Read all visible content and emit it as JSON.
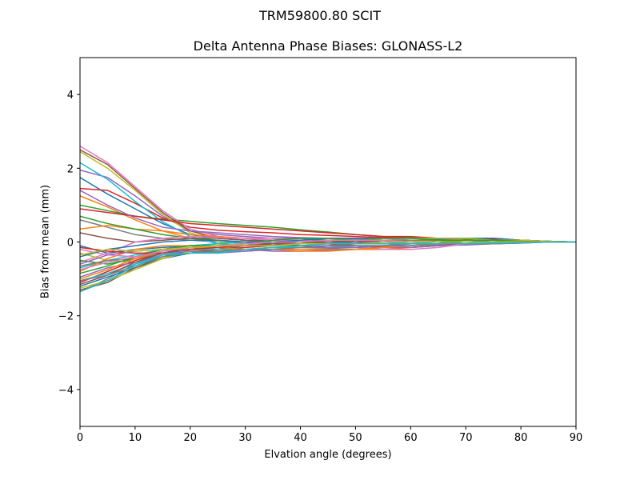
{
  "chart_data": {
    "type": "line",
    "suptitle": "TRM59800.80      SCIT",
    "title": "Delta Antenna Phase Biases: GLONASS-L2",
    "xlabel": "Elvation angle (degrees)",
    "ylabel": "Bias from mean (mm)",
    "xlim": [
      0,
      90
    ],
    "ylim": [
      -5,
      5
    ],
    "xticks": [
      0,
      10,
      20,
      30,
      40,
      50,
      60,
      70,
      80,
      90
    ],
    "yticks": [
      -4,
      -2,
      0,
      2,
      4
    ],
    "ytick_labels": [
      "−4",
      "−2",
      "0",
      "2",
      "4"
    ],
    "grid": false,
    "colors": [
      "#1f77b4",
      "#ff7f0e",
      "#2ca02c",
      "#d62728",
      "#9467bd",
      "#8c564b",
      "#e377c2",
      "#7f7f7f",
      "#bcbd22",
      "#17becf"
    ],
    "x": [
      0,
      5,
      10,
      15,
      20,
      25,
      30,
      35,
      40,
      45,
      50,
      55,
      60,
      65,
      70,
      75,
      80,
      85,
      90
    ],
    "series": [
      {
        "values": [
          1.75,
          1.3,
          0.9,
          0.5,
          0.2,
          0.1,
          0.05,
          0.05,
          0.0,
          0.0,
          0.05,
          0.05,
          0.05,
          0.0,
          0.0,
          0.05,
          0.0,
          0.0,
          0
        ]
      },
      {
        "values": [
          1.25,
          0.95,
          0.6,
          0.3,
          0.1,
          0.0,
          -0.05,
          -0.1,
          -0.1,
          -0.05,
          0.0,
          0.0,
          0.05,
          0.05,
          0.0,
          0.0,
          0.0,
          0.0,
          0
        ]
      },
      {
        "values": [
          1.0,
          0.85,
          0.7,
          0.62,
          0.56,
          0.5,
          0.45,
          0.4,
          0.33,
          0.27,
          0.2,
          0.15,
          0.12,
          0.1,
          0.08,
          0.06,
          0.05,
          0.02,
          0
        ]
      },
      {
        "values": [
          1.45,
          1.4,
          1.05,
          0.65,
          0.4,
          0.32,
          0.28,
          0.25,
          0.2,
          0.18,
          0.15,
          0.12,
          0.1,
          0.08,
          0.1,
          0.1,
          0.05,
          0.02,
          0
        ]
      },
      {
        "values": [
          1.95,
          1.75,
          1.25,
          0.7,
          0.3,
          0.2,
          0.15,
          0.1,
          0.1,
          0.05,
          0.05,
          0.0,
          0.0,
          0.05,
          0.05,
          0.05,
          0.02,
          0.0,
          0
        ]
      },
      {
        "values": [
          2.5,
          2.1,
          1.45,
          0.8,
          0.3,
          0.1,
          0.05,
          0.05,
          0.1,
          0.1,
          0.1,
          0.05,
          0.0,
          0.05,
          0.05,
          0.05,
          0.05,
          0.0,
          0
        ]
      },
      {
        "values": [
          2.6,
          2.15,
          1.5,
          0.85,
          0.35,
          0.15,
          0.1,
          0.1,
          0.05,
          0.05,
          0.1,
          0.1,
          0.05,
          0.05,
          0.1,
          0.1,
          0.05,
          0.02,
          0
        ]
      },
      {
        "values": [
          0.6,
          0.4,
          0.2,
          0.1,
          0.05,
          0.0,
          0.0,
          -0.05,
          -0.05,
          0.0,
          0.0,
          0.0,
          0.0,
          0.0,
          0.0,
          0.0,
          0.0,
          0.0,
          0
        ]
      },
      {
        "values": [
          2.45,
          2.0,
          1.4,
          0.75,
          0.25,
          0.0,
          -0.05,
          0.0,
          0.05,
          0.1,
          0.1,
          0.05,
          0.05,
          0.0,
          0.05,
          0.05,
          0.0,
          0.0,
          0
        ]
      },
      {
        "values": [
          2.15,
          1.7,
          1.1,
          0.55,
          0.15,
          -0.05,
          -0.1,
          -0.1,
          -0.05,
          0.0,
          0.0,
          0.0,
          -0.05,
          -0.05,
          0.0,
          0.0,
          0.0,
          0.0,
          0
        ]
      },
      {
        "values": [
          -0.1,
          -0.3,
          -0.2,
          -0.15,
          -0.1,
          -0.05,
          0.0,
          0.05,
          0.05,
          0.05,
          0.05,
          0.0,
          0.0,
          0.0,
          0.0,
          0.0,
          0.0,
          0.0,
          0
        ]
      },
      {
        "values": [
          0.35,
          0.45,
          0.35,
          0.3,
          0.2,
          0.15,
          0.1,
          0.05,
          0.05,
          0.0,
          0.0,
          0.0,
          0.0,
          0.0,
          0.0,
          0.0,
          0.0,
          0.0,
          0
        ]
      },
      {
        "values": [
          0.7,
          0.5,
          0.35,
          0.2,
          0.1,
          0.05,
          0.0,
          0.0,
          0.0,
          0.0,
          0.05,
          0.05,
          0.05,
          0.05,
          0.0,
          0.0,
          0.0,
          0.0,
          0
        ]
      },
      {
        "values": [
          0.9,
          0.8,
          0.7,
          0.6,
          0.5,
          0.45,
          0.4,
          0.35,
          0.3,
          0.25,
          0.2,
          0.15,
          0.15,
          0.1,
          0.1,
          0.08,
          0.05,
          0.02,
          0
        ]
      },
      {
        "values": [
          1.4,
          1.0,
          0.65,
          0.4,
          0.3,
          0.25,
          0.2,
          0.15,
          0.12,
          0.1,
          0.08,
          0.05,
          0.05,
          0.05,
          0.05,
          0.05,
          0.02,
          0.0,
          0
        ]
      },
      {
        "values": [
          0.25,
          0.1,
          0.0,
          0.05,
          0.1,
          0.1,
          0.05,
          0.0,
          0.0,
          -0.05,
          -0.1,
          -0.15,
          -0.1,
          -0.05,
          0.0,
          0.0,
          0.0,
          0.0,
          0
        ]
      },
      {
        "values": [
          -0.55,
          -0.3,
          0.0,
          0.1,
          0.15,
          0.12,
          0.1,
          0.05,
          0.05,
          0.0,
          0.0,
          0.0,
          0.0,
          0.0,
          0.0,
          0.0,
          0.0,
          0.0,
          0
        ]
      },
      {
        "values": [
          -1.35,
          -1.0,
          -0.6,
          -0.35,
          -0.3,
          -0.28,
          -0.25,
          -0.2,
          -0.2,
          -0.18,
          -0.15,
          -0.12,
          -0.1,
          -0.08,
          -0.05,
          -0.05,
          -0.03,
          0.0,
          0
        ]
      },
      {
        "values": [
          -0.3,
          -0.5,
          -0.55,
          -0.4,
          -0.3,
          -0.25,
          -0.2,
          -0.15,
          -0.1,
          -0.1,
          -0.1,
          -0.1,
          -0.1,
          -0.05,
          -0.05,
          -0.05,
          -0.02,
          0.0,
          0
        ]
      },
      {
        "values": [
          -0.7,
          -0.5,
          -0.35,
          -0.2,
          -0.1,
          -0.05,
          0.0,
          0.0,
          0.0,
          0.0,
          -0.05,
          -0.05,
          -0.05,
          0.0,
          0.0,
          0.0,
          0.0,
          0.0,
          0
        ]
      },
      {
        "values": [
          -1.2,
          -0.95,
          -0.7,
          -0.45,
          -0.3,
          -0.2,
          -0.1,
          0.0,
          0.05,
          0.1,
          0.1,
          0.1,
          0.1,
          0.08,
          0.1,
          0.1,
          0.05,
          0.02,
          0
        ]
      },
      {
        "values": [
          -0.8,
          -0.45,
          -0.2,
          -0.1,
          -0.1,
          -0.15,
          -0.2,
          -0.2,
          -0.2,
          -0.2,
          -0.2,
          -0.2,
          -0.15,
          -0.1,
          -0.05,
          -0.05,
          -0.02,
          0.0,
          0
        ]
      },
      {
        "values": [
          -0.5,
          -0.6,
          -0.45,
          -0.3,
          -0.2,
          -0.1,
          -0.05,
          0.05,
          0.1,
          0.1,
          0.05,
          0.0,
          0.0,
          0.0,
          0.0,
          0.0,
          0.0,
          0.0,
          0
        ]
      },
      {
        "values": [
          -1.1,
          -0.8,
          -0.5,
          -0.3,
          -0.2,
          -0.2,
          -0.15,
          -0.1,
          -0.05,
          -0.05,
          -0.1,
          -0.15,
          -0.15,
          -0.1,
          -0.05,
          -0.05,
          -0.02,
          0.0,
          0
        ]
      },
      {
        "values": [
          -0.95,
          -0.7,
          -0.55,
          -0.35,
          -0.25,
          -0.2,
          -0.2,
          -0.25,
          -0.25,
          -0.22,
          -0.2,
          -0.15,
          -0.15,
          -0.1,
          -0.08,
          -0.05,
          -0.03,
          0.0,
          0
        ]
      },
      {
        "values": [
          -1.3,
          -1.1,
          -0.7,
          -0.4,
          -0.25,
          -0.25,
          -0.2,
          -0.15,
          -0.15,
          -0.1,
          -0.05,
          0.0,
          0.05,
          0.05,
          0.05,
          0.05,
          0.05,
          0.02,
          0
        ]
      },
      {
        "values": [
          -0.2,
          -0.35,
          -0.4,
          -0.3,
          -0.15,
          -0.1,
          -0.05,
          -0.05,
          -0.1,
          -0.1,
          -0.15,
          -0.2,
          -0.2,
          -0.15,
          -0.05,
          0.0,
          0.0,
          0.0,
          0
        ]
      },
      {
        "values": [
          -0.65,
          -0.5,
          -0.45,
          -0.3,
          -0.2,
          -0.15,
          -0.1,
          -0.05,
          0.0,
          0.0,
          0.0,
          0.05,
          0.05,
          0.05,
          0.05,
          0.05,
          0.02,
          0.0,
          0
        ]
      },
      {
        "values": [
          -1.25,
          -1.05,
          -0.75,
          -0.45,
          -0.25,
          -0.15,
          -0.1,
          -0.1,
          -0.05,
          0.0,
          0.05,
          0.1,
          0.1,
          0.1,
          0.1,
          0.05,
          0.05,
          0.02,
          0
        ]
      },
      {
        "values": [
          -1.05,
          -0.85,
          -0.6,
          -0.35,
          -0.2,
          -0.2,
          -0.2,
          -0.15,
          -0.15,
          -0.15,
          -0.1,
          -0.1,
          -0.05,
          -0.05,
          -0.05,
          -0.02,
          0.0,
          0.0,
          0
        ]
      },
      {
        "values": [
          -0.4,
          -0.2,
          -0.1,
          0.0,
          0.05,
          0.05,
          0.0,
          -0.05,
          -0.1,
          -0.15,
          -0.15,
          -0.1,
          -0.05,
          -0.05,
          0.0,
          0.0,
          0.0,
          0.0,
          0
        ]
      },
      {
        "values": [
          -1.0,
          -0.75,
          -0.45,
          -0.25,
          -0.15,
          -0.15,
          -0.2,
          -0.2,
          -0.25,
          -0.25,
          -0.2,
          -0.15,
          -0.1,
          -0.05,
          -0.05,
          -0.03,
          -0.02,
          0.0,
          0
        ]
      },
      {
        "values": [
          -0.85,
          -0.65,
          -0.4,
          -0.2,
          -0.1,
          -0.1,
          -0.1,
          -0.1,
          -0.05,
          0.0,
          0.05,
          0.1,
          0.1,
          0.05,
          0.05,
          0.05,
          0.02,
          0.0,
          0
        ]
      },
      {
        "values": [
          -0.15,
          -0.25,
          -0.3,
          -0.3,
          -0.2,
          -0.15,
          -0.1,
          -0.05,
          0.0,
          0.0,
          0.0,
          0.0,
          0.0,
          0.0,
          0.0,
          0.0,
          0.0,
          0.0,
          0
        ]
      },
      {
        "values": [
          -0.6,
          -0.35,
          -0.25,
          -0.2,
          -0.25,
          -0.3,
          -0.25,
          -0.2,
          -0.15,
          -0.15,
          -0.15,
          -0.1,
          -0.05,
          -0.05,
          0.0,
          0.0,
          0.0,
          0.0,
          0
        ]
      },
      {
        "values": [
          -1.15,
          -0.9,
          -0.55,
          -0.3,
          -0.15,
          -0.1,
          -0.1,
          -0.05,
          0.0,
          0.0,
          0.0,
          -0.05,
          -0.05,
          -0.05,
          0.0,
          0.0,
          0.0,
          0.0,
          0
        ]
      },
      {
        "values": [
          -0.75,
          -0.55,
          -0.4,
          -0.25,
          -0.15,
          -0.1,
          -0.05,
          0.0,
          0.0,
          0.05,
          0.05,
          0.05,
          0.0,
          0.0,
          0.0,
          0.0,
          0.0,
          0.0,
          0
        ]
      },
      {
        "values": [
          -1.05,
          -0.9,
          -0.65,
          -0.4,
          -0.3,
          -0.25,
          -0.2,
          -0.2,
          -0.15,
          -0.1,
          -0.1,
          -0.1,
          -0.1,
          -0.05,
          -0.05,
          -0.05,
          -0.02,
          0.0,
          0
        ]
      },
      {
        "values": [
          -0.35,
          -0.2,
          -0.25,
          -0.2,
          -0.15,
          -0.1,
          -0.1,
          -0.1,
          -0.05,
          -0.05,
          -0.05,
          0.0,
          0.0,
          0.0,
          0.0,
          0.0,
          0.0,
          0.0,
          0
        ]
      },
      {
        "values": [
          -1.35,
          -1.05,
          -0.65,
          -0.35,
          -0.3,
          -0.3,
          -0.2,
          -0.15,
          -0.1,
          -0.05,
          -0.05,
          -0.05,
          -0.05,
          -0.05,
          -0.05,
          -0.03,
          -0.02,
          0.0,
          0
        ]
      }
    ]
  }
}
